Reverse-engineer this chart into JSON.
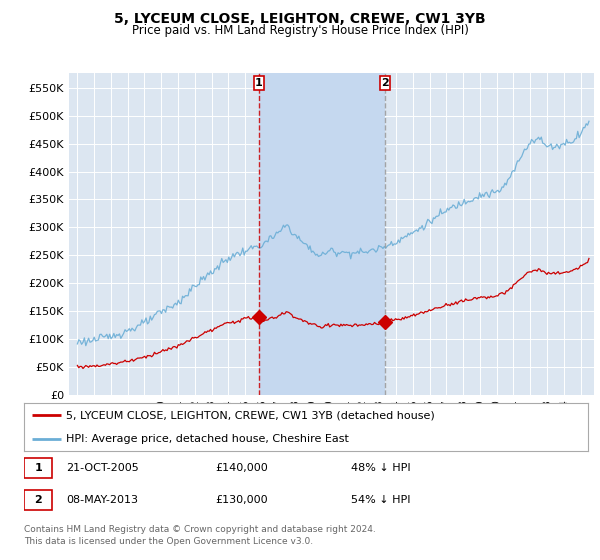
{
  "title": "5, LYCEUM CLOSE, LEIGHTON, CREWE, CW1 3YB",
  "subtitle": "Price paid vs. HM Land Registry's House Price Index (HPI)",
  "ylim": [
    0,
    577000
  ],
  "yticks": [
    0,
    50000,
    100000,
    150000,
    200000,
    250000,
    300000,
    350000,
    400000,
    450000,
    500000,
    550000
  ],
  "ytick_labels": [
    "£0",
    "£50K",
    "£100K",
    "£150K",
    "£200K",
    "£250K",
    "£300K",
    "£350K",
    "£400K",
    "£450K",
    "£500K",
    "£550K"
  ],
  "hpi_color": "#6baed6",
  "sale_color": "#cc0000",
  "marker1_x": 2005.8,
  "marker1_y": 140000,
  "marker2_x": 2013.35,
  "marker2_y": 130000,
  "annotation1": {
    "label": "1",
    "date": "21-OCT-2005",
    "price": "£140,000",
    "pct": "48% ↓ HPI"
  },
  "annotation2": {
    "label": "2",
    "date": "08-MAY-2013",
    "price": "£130,000",
    "pct": "54% ↓ HPI"
  },
  "legend_sale": "5, LYCEUM CLOSE, LEIGHTON, CREWE, CW1 3YB (detached house)",
  "legend_hpi": "HPI: Average price, detached house, Cheshire East",
  "footer": "Contains HM Land Registry data © Crown copyright and database right 2024.\nThis data is licensed under the Open Government Licence v3.0.",
  "plot_bg": "#dce6f1",
  "shaded_bg": "#c5d8ef",
  "grid_color": "#ffffff",
  "xmin": 1994.5,
  "xmax": 2025.8
}
